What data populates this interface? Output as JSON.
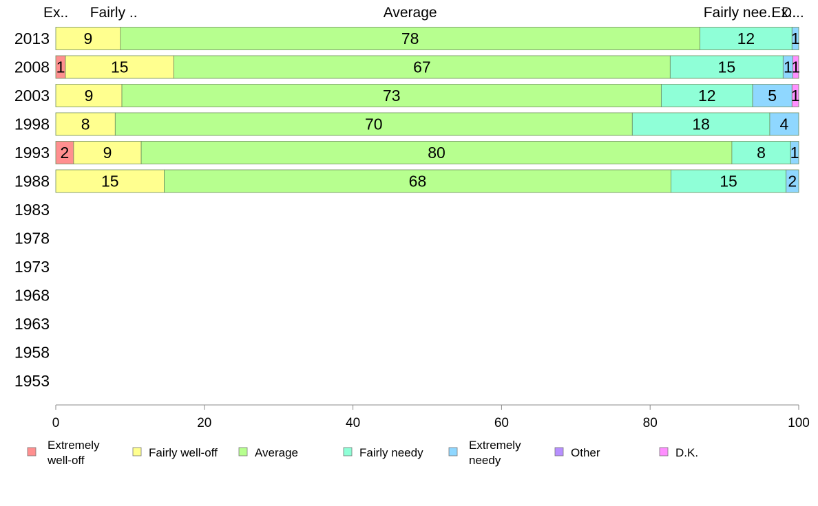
{
  "chart_data": {
    "type": "bar",
    "orientation": "horizontal",
    "stacked": true,
    "categories": [
      "2013",
      "2008",
      "2003",
      "1998",
      "1993",
      "1988",
      "1983",
      "1978",
      "1973",
      "1968",
      "1963",
      "1958",
      "1953"
    ],
    "top_labels": [
      "Ex..",
      "Fairly ..",
      "Average",
      "Fairly nee..",
      "Ex..",
      "D..."
    ],
    "series": [
      {
        "name": "Extremely well-off",
        "color": "#ff8f8f",
        "values": [
          0,
          1.3,
          0,
          0,
          2.4,
          0,
          null,
          null,
          null,
          null,
          null,
          null,
          null
        ],
        "labels": [
          "",
          "1",
          "",
          "",
          "2",
          "",
          "",
          "",
          "",
          "",
          "",
          "",
          ""
        ]
      },
      {
        "name": "Fairly well-off",
        "color": "#ffff8f",
        "values": [
          8.7,
          14.6,
          8.9,
          8.0,
          9.1,
          14.6,
          null,
          null,
          null,
          null,
          null,
          null,
          null
        ],
        "labels": [
          "9",
          "15",
          "9",
          "8",
          "9",
          "15",
          "",
          "",
          "",
          "",
          "",
          "",
          ""
        ]
      },
      {
        "name": "Average",
        "color": "#b7ff8f",
        "values": [
          78.0,
          66.8,
          72.6,
          69.6,
          79.5,
          68.2,
          null,
          null,
          null,
          null,
          null,
          null,
          null
        ],
        "labels": [
          "78",
          "67",
          "73",
          "70",
          "80",
          "68",
          "",
          "",
          "",
          "",
          "",
          "",
          ""
        ]
      },
      {
        "name": "Fairly needy",
        "color": "#8fffd7",
        "values": [
          12.4,
          15.2,
          12.3,
          18.5,
          7.9,
          15.5,
          null,
          null,
          null,
          null,
          null,
          null,
          null
        ],
        "labels": [
          "12",
          "15",
          "12",
          "18",
          "8",
          "15",
          "",
          "",
          "",
          "",
          "",
          "",
          ""
        ]
      },
      {
        "name": "Extremely needy",
        "color": "#8fd7ff",
        "values": [
          0.9,
          1.3,
          5.3,
          3.9,
          1.1,
          1.7,
          null,
          null,
          null,
          null,
          null,
          null,
          null
        ],
        "labels": [
          "1",
          "1",
          "5",
          "4",
          "1",
          "2",
          "",
          "",
          "",
          "",
          "",
          "",
          ""
        ]
      },
      {
        "name": "Other",
        "color": "#b78fff",
        "values": [
          0,
          0,
          0,
          0,
          0,
          0,
          null,
          null,
          null,
          null,
          null,
          null,
          null
        ],
        "labels": [
          "",
          "",
          "",
          "",
          "",
          "",
          "",
          "",
          "",
          "",
          "",
          "",
          ""
        ]
      },
      {
        "name": "D.K.",
        "color": "#ff8fff",
        "values": [
          0,
          0.8,
          0.9,
          0,
          0,
          0,
          null,
          null,
          null,
          null,
          null,
          null,
          null
        ],
        "labels": [
          "",
          "1",
          "1",
          "",
          "",
          "",
          "",
          "",
          "",
          "",
          "",
          "",
          ""
        ]
      }
    ],
    "xlim": [
      0,
      100
    ],
    "xticks": [
      "0",
      "20",
      "40",
      "60",
      "80",
      "100"
    ],
    "legend": [
      {
        "lines": [
          "Extremely",
          "well-off"
        ],
        "color": "#ff8f8f"
      },
      {
        "lines": [
          "Fairly well-off"
        ],
        "color": "#ffff8f"
      },
      {
        "lines": [
          "Average"
        ],
        "color": "#b7ff8f"
      },
      {
        "lines": [
          "Fairly needy"
        ],
        "color": "#8fffd7"
      },
      {
        "lines": [
          "Extremely",
          "needy"
        ],
        "color": "#8fd7ff"
      },
      {
        "lines": [
          "Other"
        ],
        "color": "#b78fff"
      },
      {
        "lines": [
          "D.K."
        ],
        "color": "#ff8fff"
      }
    ],
    "legend_position": "bottom",
    "grid": false
  }
}
